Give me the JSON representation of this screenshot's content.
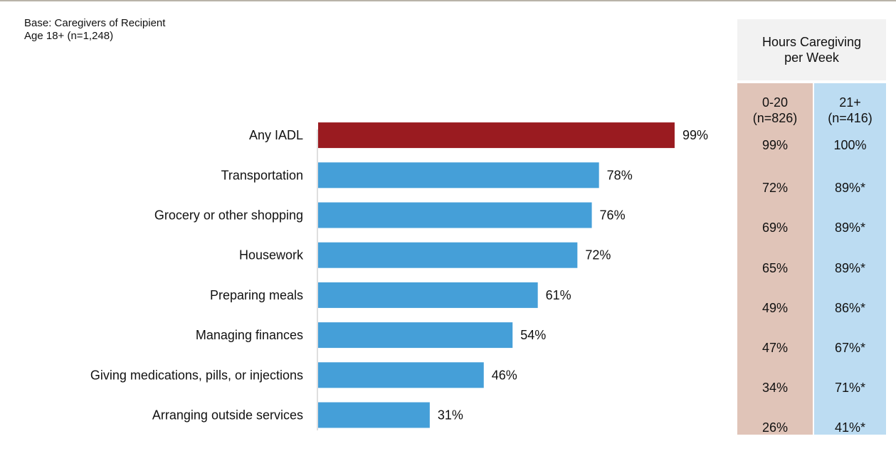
{
  "base_note": {
    "line1": "Base: Caregivers of Recipient",
    "line2": "Age 18+ (n=1,248)"
  },
  "colors": {
    "highlight_bar": "#9a1b20",
    "bar": "#459fd8",
    "col_low": "#e0c4b8",
    "col_high": "#bcdcf2",
    "header_bg": "#f2f2f2"
  },
  "chart_data": {
    "type": "bar",
    "orientation": "horizontal",
    "xlim": [
      0,
      100
    ],
    "unit": "%",
    "categories": [
      "Any IADL",
      "Transportation",
      "Grocery or other shopping",
      "Housework",
      "Preparing meals",
      "Managing finances",
      "Giving medications, pills, or injections",
      "Arranging outside services"
    ],
    "values": [
      99,
      78,
      76,
      72,
      61,
      54,
      46,
      31
    ],
    "highlight_index": 0
  },
  "hours_table": {
    "header_line1": "Hours Caregiving",
    "header_line2": "per Week",
    "columns": [
      {
        "label_line1": "0-20",
        "label_line2": "(n=826)",
        "values": [
          "99%",
          "72%",
          "69%",
          "65%",
          "49%",
          "47%",
          "34%",
          "26%"
        ]
      },
      {
        "label_line1": "21+",
        "label_line2": "(n=416)",
        "values": [
          "100%",
          "89%*",
          "89%*",
          "89%*",
          "86%*",
          "67%*",
          "71%*",
          "41%*"
        ]
      }
    ]
  }
}
